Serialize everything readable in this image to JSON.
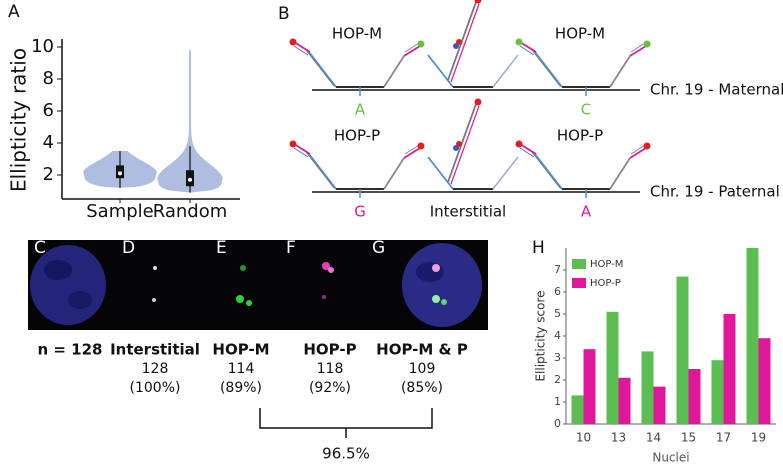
{
  "panel_labels": [
    "A",
    "B",
    "C",
    "D",
    "E",
    "F",
    "G",
    "H"
  ],
  "chart_data": [
    {
      "type": "violin",
      "ylabel": "Ellipticity ratio",
      "categories": [
        "Sample",
        "Random"
      ],
      "color": "#aebde0",
      "min": [
        1.2,
        0.9
      ],
      "q1": [
        1.8,
        1.3
      ],
      "median": [
        2.1,
        1.7
      ],
      "q3": [
        2.6,
        2.3
      ],
      "max": [
        3.5,
        9.8
      ],
      "ylim": [
        0.5,
        10.5
      ],
      "yticks": [
        2,
        4,
        6,
        8,
        10
      ]
    },
    {
      "type": "bar",
      "ylabel": "Ellipticity score",
      "xlabel": "Nuclei",
      "categories": [
        "10",
        "13",
        "14",
        "15",
        "17",
        "19"
      ],
      "series": [
        {
          "name": "HOP-M",
          "color": "#5cbd52",
          "values": [
            1.3,
            5.1,
            3.3,
            6.7,
            2.9,
            8.0
          ]
        },
        {
          "name": "HOP-P",
          "color": "#e0179a",
          "values": [
            3.4,
            2.1,
            1.7,
            2.5,
            5.0,
            3.9
          ]
        }
      ],
      "ylim": [
        0,
        8
      ],
      "yticks": [
        0,
        1,
        2,
        3,
        4,
        5,
        6,
        7
      ],
      "legend": "upper left"
    }
  ],
  "diagram": {
    "maternal": {
      "probe_left": "HOP-M",
      "probe_right": "HOP-M",
      "chromosome": "Chr. 19 - Maternal",
      "snp_left": "A",
      "snp_right": "C"
    },
    "paternal": {
      "probe_left": "HOP-P",
      "probe_right": "HOP-P",
      "chromosome": "Chr. 19 - Paternal",
      "snp_left": "G",
      "middle": "Interstitial",
      "snp_right": "A"
    }
  },
  "images": {
    "items": [
      {
        "label": "n = 128"
      },
      {
        "label": "Interstitial",
        "count": 128,
        "percent": "(100%)"
      },
      {
        "label": "HOP-M",
        "count": 114,
        "percent": "(89%)"
      },
      {
        "label": "HOP-P",
        "count": 118,
        "percent": "(92%)"
      },
      {
        "label": "HOP-M & P",
        "count": 109,
        "percent": "(85%)"
      }
    ],
    "combined": "96.5%"
  }
}
